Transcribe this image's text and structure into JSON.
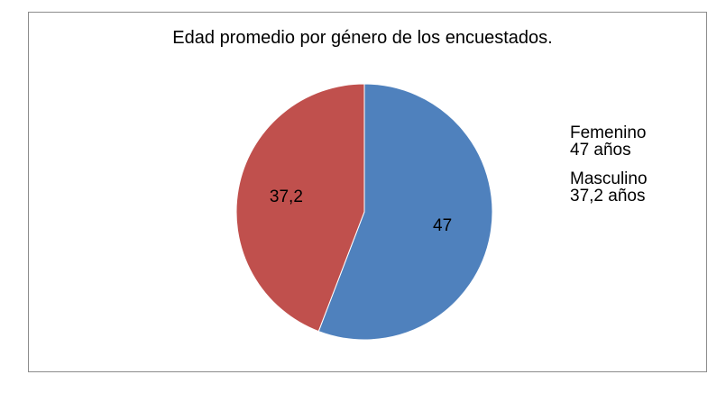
{
  "chart_data": {
    "type": "pie",
    "title": "Edad promedio por género de los encuestados.",
    "slices": [
      {
        "label": "Femenino",
        "value": 47,
        "data_label": "47",
        "legend_value": "47 años",
        "color": "#4f81bd"
      },
      {
        "label": "Masculino",
        "value": 37.2,
        "data_label": "37,2",
        "legend_value": "37,2 años",
        "color": "#c0504d"
      }
    ],
    "start_angle_deg": 0,
    "legend_position": "right"
  }
}
